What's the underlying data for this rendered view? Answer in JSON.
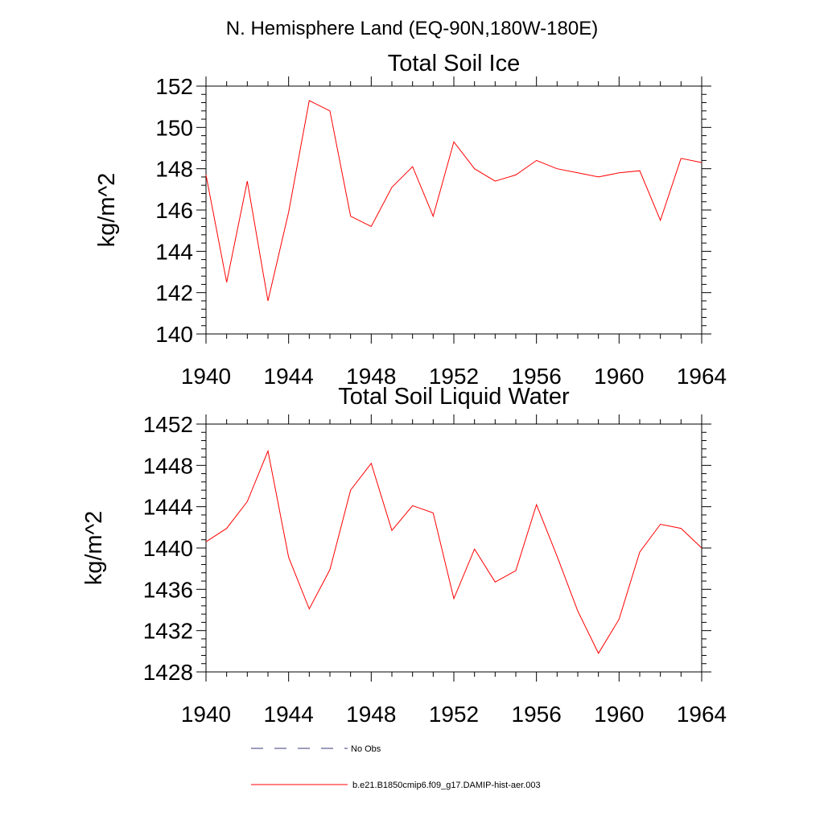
{
  "figure": {
    "supertitle": "N. Hemisphere Land (EQ-90N,180W-180E)"
  },
  "chart_data": [
    {
      "type": "line",
      "title": "Total Soil Ice",
      "ylabel": "kg/m^2",
      "xlabel": "",
      "xlim": [
        1940,
        1964
      ],
      "ylim": [
        140,
        152
      ],
      "x_ticks": [
        1940,
        1944,
        1948,
        1952,
        1956,
        1960,
        1964
      ],
      "x_tick_labels": [
        "1940",
        "1944",
        "1948",
        "1952",
        "1956",
        "1960",
        "1964"
      ],
      "x_minor_step": 1,
      "y_ticks": [
        140,
        142,
        144,
        146,
        148,
        150,
        152
      ],
      "y_tick_labels": [
        "140",
        "142",
        "144",
        "146",
        "148",
        "150",
        "152"
      ],
      "y_minor_step": 0.4,
      "grid": false,
      "series": [
        {
          "name": "b.e21.B1850cmip6.f09_g17.DAMIP-hist-aer.003",
          "color": "#ff0000",
          "x": [
            1940,
            1941,
            1942,
            1943,
            1944,
            1945,
            1946,
            1947,
            1948,
            1949,
            1950,
            1951,
            1952,
            1953,
            1954,
            1955,
            1956,
            1957,
            1958,
            1959,
            1960,
            1961,
            1962,
            1963,
            1964
          ],
          "values": [
            147.7,
            142.5,
            147.4,
            141.6,
            145.9,
            151.3,
            150.8,
            145.7,
            145.2,
            147.1,
            148.1,
            145.7,
            149.3,
            148.0,
            147.4,
            147.7,
            148.4,
            148.0,
            147.8,
            147.6,
            147.8,
            147.9,
            145.5,
            148.5,
            148.3
          ]
        }
      ]
    },
    {
      "type": "line",
      "title": "Total Soil Liquid Water",
      "ylabel": "kg/m^2",
      "xlabel": "",
      "xlim": [
        1940,
        1964
      ],
      "ylim": [
        1428,
        1452
      ],
      "x_ticks": [
        1940,
        1944,
        1948,
        1952,
        1956,
        1960,
        1964
      ],
      "x_tick_labels": [
        "1940",
        "1944",
        "1948",
        "1952",
        "1956",
        "1960",
        "1964"
      ],
      "x_minor_step": 1,
      "y_ticks": [
        1428,
        1432,
        1436,
        1440,
        1444,
        1448,
        1452
      ],
      "y_tick_labels": [
        "1428",
        "1432",
        "1436",
        "1440",
        "1444",
        "1448",
        "1452"
      ],
      "y_minor_step": 0.8,
      "grid": false,
      "series": [
        {
          "name": "b.e21.B1850cmip6.f09_g17.DAMIP-hist-aer.003",
          "color": "#ff0000",
          "x": [
            1940,
            1941,
            1942,
            1943,
            1944,
            1945,
            1946,
            1947,
            1948,
            1949,
            1950,
            1951,
            1952,
            1953,
            1954,
            1955,
            1956,
            1957,
            1958,
            1959,
            1960,
            1961,
            1962,
            1963,
            1964
          ],
          "values": [
            1440.6,
            1441.9,
            1444.5,
            1449.4,
            1439.1,
            1434.1,
            1437.9,
            1445.6,
            1448.2,
            1441.7,
            1444.1,
            1443.4,
            1435.1,
            1439.9,
            1436.7,
            1437.8,
            1444.2,
            1439.2,
            1433.9,
            1429.8,
            1433.1,
            1439.6,
            1442.3,
            1441.9,
            1440.0
          ]
        }
      ]
    }
  ],
  "legend": {
    "placement": "bottom",
    "items": [
      {
        "label": "No Obs",
        "color": "#3a3a7a",
        "dash": true
      },
      {
        "label": "b.e21.B1850cmip6.f09_g17.DAMIP-hist-aer.003",
        "color": "#ff0000",
        "dash": false
      }
    ]
  }
}
